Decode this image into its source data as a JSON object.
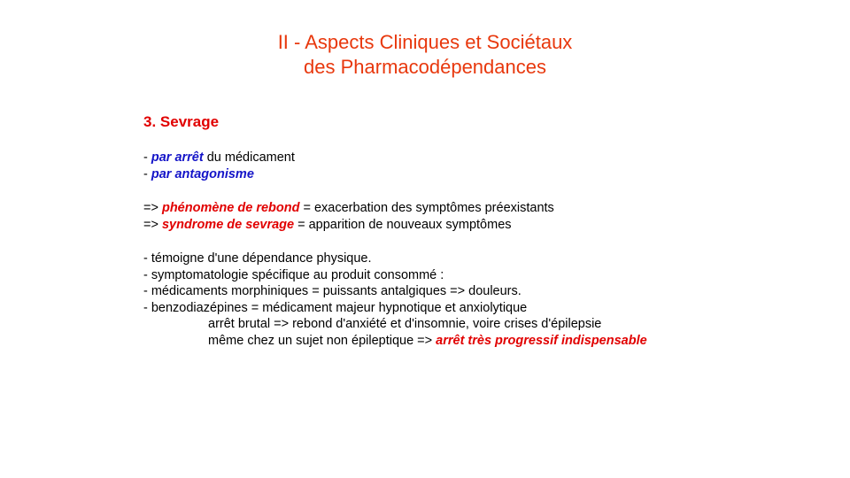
{
  "title": {
    "line1": "II - Aspects Cliniques et Sociétaux",
    "line2": "des Pharmacodépendances"
  },
  "section": {
    "heading": "3. Sevrage"
  },
  "causes": [
    {
      "prefix": "- ",
      "keyword": "par arrêt",
      "rest": " du médicament"
    },
    {
      "prefix": "- ",
      "keyword": "par antagonisme",
      "rest": ""
    }
  ],
  "definitions": [
    {
      "prefix": "=> ",
      "keyword": "phénomène de rebond",
      "rest": " = exacerbation des symptômes  préexistants"
    },
    {
      "prefix": "=> ",
      "keyword": "syndrome de sevrage",
      "rest": " = apparition de nouveaux  symptômes"
    }
  ],
  "notes": [
    "- témoigne d'une dépendance physique.",
    "- symptomatologie spécifique au produit consommé :",
    "- médicaments morphiniques = puissants antalgiques => douleurs.",
    "- benzodiazépines = médicament majeur hypnotique  et anxiolytique"
  ],
  "benzo_details": {
    "line1": "arrêt brutal => rebond d'anxiété et d'insomnie, voire crises d'épilepsie",
    "line2_prefix": "même chez un sujet non épileptique => ",
    "line2_keyword": "arrêt très progressif  indispensable"
  },
  "colors": {
    "title": "#e8380d",
    "heading": "#e10000",
    "blue_keyword": "#1414c8",
    "red_keyword": "#e10000",
    "body_text": "#000000",
    "background": "#ffffff"
  }
}
